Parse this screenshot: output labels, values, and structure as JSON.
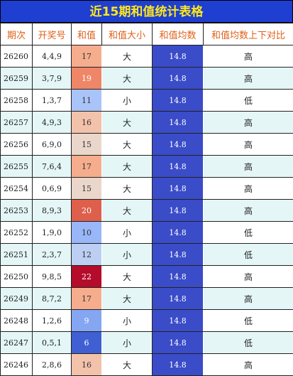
{
  "title": "近15期和值统计表格",
  "columns": [
    "期次",
    "开奖号",
    "和值",
    "和值大小",
    "和值均数",
    "和值均数上下对比"
  ],
  "header_color": "#e0601a",
  "title_background": "#1f3fd0",
  "title_color": "#ffe81a",
  "avg_background": "#3a4cc8",
  "stripe_color": "#e4f6f6",
  "rows": [
    {
      "issue": 26260,
      "numbers": "4,4,9",
      "sum": 17,
      "size": "大",
      "avg": 14.8,
      "compare": "高",
      "sum_color": "#f5ad8e",
      "sum_text": "#333333"
    },
    {
      "issue": 26259,
      "numbers": "3,7,9",
      "sum": 19,
      "size": "大",
      "avg": 14.8,
      "compare": "高",
      "sum_color": "#ef8668",
      "sum_text": "#ffffff"
    },
    {
      "issue": 26258,
      "numbers": "1,3,7",
      "sum": 11,
      "size": "小",
      "avg": 14.8,
      "compare": "低",
      "sum_color": "#a9c4f8",
      "sum_text": "#333333"
    },
    {
      "issue": 26257,
      "numbers": "4,9,3",
      "sum": 16,
      "size": "大",
      "avg": 14.8,
      "compare": "高",
      "sum_color": "#f3c2aa",
      "sum_text": "#333333"
    },
    {
      "issue": 26256,
      "numbers": "6,9,0",
      "sum": 15,
      "size": "大",
      "avg": 14.8,
      "compare": "高",
      "sum_color": "#ead6cb",
      "sum_text": "#333333"
    },
    {
      "issue": 26255,
      "numbers": "7,6,4",
      "sum": 17,
      "size": "大",
      "avg": 14.8,
      "compare": "高",
      "sum_color": "#f5ad8e",
      "sum_text": "#333333"
    },
    {
      "issue": 26254,
      "numbers": "0,6,9",
      "sum": 15,
      "size": "大",
      "avg": 14.8,
      "compare": "高",
      "sum_color": "#ead6cb",
      "sum_text": "#333333"
    },
    {
      "issue": 26253,
      "numbers": "8,9,3",
      "sum": 20,
      "size": "大",
      "avg": 14.8,
      "compare": "高",
      "sum_color": "#de5f4c",
      "sum_text": "#ffffff"
    },
    {
      "issue": 26252,
      "numbers": "1,9,0",
      "sum": 10,
      "size": "小",
      "avg": 14.8,
      "compare": "低",
      "sum_color": "#98b6f8",
      "sum_text": "#333333"
    },
    {
      "issue": 26251,
      "numbers": "2,3,7",
      "sum": 12,
      "size": "小",
      "avg": 14.8,
      "compare": "低",
      "sum_color": "#bccff2",
      "sum_text": "#333333"
    },
    {
      "issue": 26250,
      "numbers": "9,8,5",
      "sum": 22,
      "size": "大",
      "avg": 14.8,
      "compare": "高",
      "sum_color": "#b40c2a",
      "sum_text": "#ffffff"
    },
    {
      "issue": 26249,
      "numbers": "8,7,2",
      "sum": 17,
      "size": "大",
      "avg": 14.8,
      "compare": "高",
      "sum_color": "#f5ad8e",
      "sum_text": "#333333"
    },
    {
      "issue": 26248,
      "numbers": "1,2,6",
      "sum": 9,
      "size": "小",
      "avg": 14.8,
      "compare": "低",
      "sum_color": "#85a6f2",
      "sum_text": "#ffffff"
    },
    {
      "issue": 26247,
      "numbers": "0,5,1",
      "sum": 6,
      "size": "小",
      "avg": 14.8,
      "compare": "低",
      "sum_color": "#3f5fd2",
      "sum_text": "#ffffff"
    },
    {
      "issue": 26246,
      "numbers": "2,8,6",
      "sum": 16,
      "size": "大",
      "avg": 14.8,
      "compare": "高",
      "sum_color": "#f3c2aa",
      "sum_text": "#333333"
    }
  ]
}
